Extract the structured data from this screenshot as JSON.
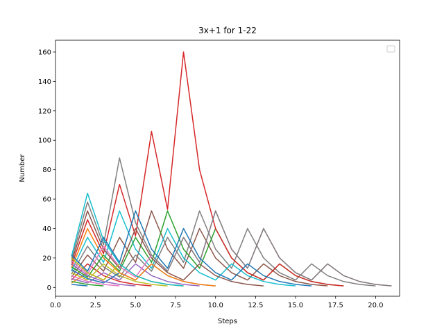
{
  "chart_data": {
    "type": "line",
    "title": "3x+1 for 1-22",
    "xlabel": "Steps",
    "ylabel": "Number",
    "xlim": [
      0,
      21.5
    ],
    "ylim": [
      -6,
      168
    ],
    "xticks": [
      0,
      2.5,
      5,
      7.5,
      10,
      12.5,
      15,
      17.5,
      20
    ],
    "xtick_labels": [
      "0.0",
      "2.5",
      "5.0",
      "7.5",
      "10.0",
      "12.5",
      "15.0",
      "17.5",
      "20.0"
    ],
    "yticks": [
      0,
      20,
      40,
      60,
      80,
      100,
      120,
      140,
      160
    ],
    "ytick_labels": [
      "0",
      "20",
      "40",
      "60",
      "80",
      "100",
      "120",
      "140",
      "160"
    ],
    "grid": false,
    "legend": "upper right (empty)",
    "palette": [
      "#1f77b4",
      "#ff7f0e",
      "#2ca02c",
      "#d62728",
      "#9467bd",
      "#8c564b",
      "#e377c2",
      "#7f7f7f",
      "#bcbd22",
      "#17becf"
    ],
    "series": [
      {
        "values": [
          2,
          1
        ]
      },
      {
        "values": [
          3,
          10,
          5,
          16,
          8,
          4,
          2,
          1
        ]
      },
      {
        "values": [
          4,
          2,
          1
        ]
      },
      {
        "values": [
          5,
          16,
          8,
          4,
          2,
          1
        ]
      },
      {
        "values": [
          6,
          3,
          10,
          5,
          16,
          8,
          4,
          2,
          1
        ]
      },
      {
        "values": [
          7,
          22,
          11,
          34,
          17,
          52,
          26,
          13,
          40,
          20,
          10,
          5,
          16,
          8,
          4,
          2,
          1
        ]
      },
      {
        "values": [
          8,
          4,
          2,
          1
        ]
      },
      {
        "values": [
          9,
          28,
          14,
          7,
          22,
          11,
          34,
          17,
          52,
          26,
          13,
          40,
          20,
          10,
          5,
          16,
          8,
          4,
          2,
          1
        ]
      },
      {
        "values": [
          10,
          5,
          16,
          8,
          4,
          2,
          1
        ]
      },
      {
        "values": [
          11,
          34,
          17,
          52,
          26,
          13,
          40,
          20,
          10,
          5,
          16,
          8,
          4,
          2,
          1
        ]
      },
      {
        "values": [
          12,
          6,
          3,
          10,
          5,
          16,
          8,
          4,
          2,
          1
        ]
      },
      {
        "values": [
          13,
          40,
          20,
          10,
          5,
          16,
          8,
          4,
          2,
          1
        ]
      },
      {
        "values": [
          14,
          7,
          22,
          11,
          34,
          17,
          52,
          26,
          13,
          40,
          20,
          10,
          5,
          16,
          8,
          4,
          2,
          1
        ]
      },
      {
        "values": [
          15,
          46,
          23,
          70,
          35,
          106,
          53,
          160,
          80,
          40,
          20,
          10,
          5,
          16,
          8,
          4,
          2,
          1
        ]
      },
      {
        "values": [
          16,
          8,
          4,
          2,
          1
        ]
      },
      {
        "values": [
          17,
          52,
          26,
          13,
          40,
          20,
          10,
          5,
          16,
          8,
          4,
          2,
          1
        ]
      },
      {
        "values": [
          18,
          9,
          28,
          14,
          7,
          22,
          11,
          34,
          17,
          52,
          26,
          13,
          40,
          20,
          10,
          5,
          16,
          8,
          4,
          2,
          1
        ]
      },
      {
        "values": [
          19,
          58,
          29,
          88,
          44,
          22,
          11,
          34,
          17,
          52,
          26,
          13,
          40,
          20,
          10,
          5,
          16,
          8,
          4,
          2,
          1
        ]
      },
      {
        "values": [
          20,
          10,
          5,
          16,
          8,
          4,
          2,
          1
        ]
      },
      {
        "values": [
          21,
          64,
          32,
          16,
          8,
          4,
          2,
          1
        ]
      },
      {
        "values": [
          22,
          11,
          34,
          17,
          52,
          26,
          13,
          40,
          20,
          10,
          5,
          16,
          8,
          4,
          2,
          1
        ]
      }
    ]
  }
}
